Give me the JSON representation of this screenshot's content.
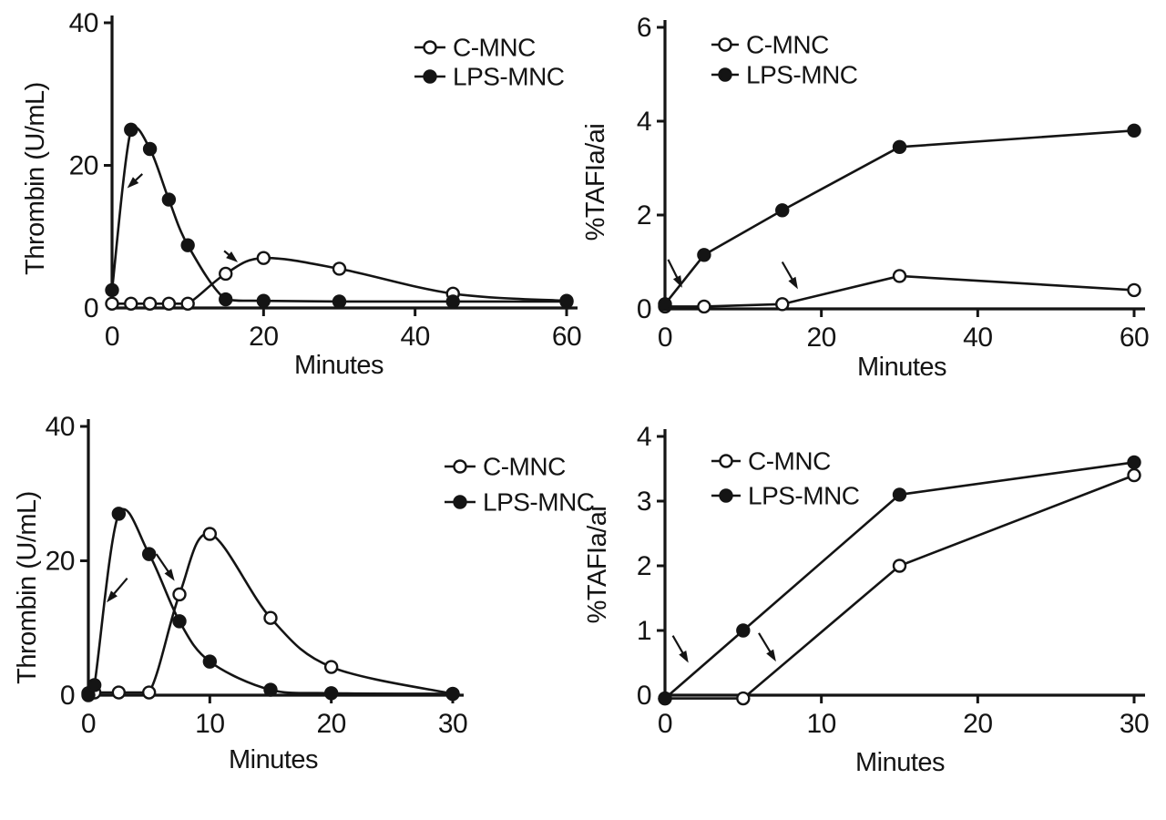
{
  "figure": {
    "background": "#ffffff",
    "ink_color": "#141414",
    "description": "Four-panel line figure: thrombin generation and %TAFIa/ai over time for control (C-MNC) and LPS-stimulated (LPS-MNC) mononuclear cells"
  },
  "chart_data": [
    {
      "id": "thrombin-60min",
      "position": "top-left",
      "type": "line",
      "title": "",
      "xlabel": "Minutes",
      "ylabel": "Thrombin (U/mL)",
      "xlim": [
        0,
        60
      ],
      "ylim": [
        0,
        40
      ],
      "xticks": [
        0,
        20,
        40,
        60
      ],
      "yticks": [
        0,
        20,
        40
      ],
      "grid": false,
      "smooth": true,
      "legend_position": "upper-right",
      "series": [
        {
          "name": "C-MNC",
          "marker": "open-circle",
          "x": [
            0,
            2.5,
            5,
            7.5,
            10,
            15,
            20,
            30,
            45,
            60
          ],
          "y": [
            0.6,
            0.6,
            0.6,
            0.6,
            0.6,
            4.8,
            7.0,
            5.5,
            2.0,
            1.0
          ]
        },
        {
          "name": "LPS-MNC",
          "marker": "filled-circle",
          "x": [
            0,
            2.5,
            5,
            7.5,
            10,
            15,
            20,
            30,
            45,
            60
          ],
          "y": [
            2.5,
            25.0,
            22.3,
            15.2,
            8.8,
            1.2,
            1.0,
            0.9,
            0.9,
            0.9
          ]
        }
      ],
      "arrows": [
        {
          "from": [
            4.0,
            18.8
          ],
          "to": [
            2.0,
            16.8
          ]
        },
        {
          "from": [
            14.8,
            8.0
          ],
          "to": [
            16.6,
            6.4
          ]
        }
      ]
    },
    {
      "id": "tafia-60min",
      "position": "top-right",
      "type": "line",
      "title": "",
      "xlabel": "Minutes",
      "ylabel": "%TAFIa/ai",
      "xlim": [
        0,
        60
      ],
      "ylim": [
        0,
        6
      ],
      "xticks": [
        0,
        20,
        40,
        60
      ],
      "yticks": [
        0,
        2,
        4,
        6
      ],
      "grid": false,
      "smooth": false,
      "legend_position": "upper-left",
      "series": [
        {
          "name": "C-MNC",
          "marker": "open-circle",
          "x": [
            0,
            5,
            15,
            30,
            60
          ],
          "y": [
            0.05,
            0.05,
            0.1,
            0.7,
            0.4
          ]
        },
        {
          "name": "LPS-MNC",
          "marker": "filled-circle",
          "x": [
            0,
            5,
            15,
            30,
            60
          ],
          "y": [
            0.1,
            1.15,
            2.1,
            3.45,
            3.8
          ]
        }
      ],
      "arrows": [
        {
          "from": [
            0.4,
            1.05
          ],
          "to": [
            2.2,
            0.45
          ]
        },
        {
          "from": [
            15.0,
            1.0
          ],
          "to": [
            17.0,
            0.42
          ]
        }
      ]
    },
    {
      "id": "thrombin-30min",
      "position": "bottom-left",
      "type": "line",
      "title": "",
      "xlabel": "Minutes",
      "ylabel": "Thrombin (U/mL)",
      "xlim": [
        0,
        30
      ],
      "ylim": [
        0,
        40
      ],
      "xticks": [
        0,
        10,
        20,
        30
      ],
      "yticks": [
        0,
        20,
        40
      ],
      "grid": false,
      "smooth": true,
      "legend_position": "upper-right",
      "series": [
        {
          "name": "C-MNC",
          "marker": "open-circle",
          "x": [
            0,
            0.5,
            2.5,
            5,
            7.5,
            10,
            15,
            20,
            30
          ],
          "y": [
            0.3,
            0.4,
            0.4,
            0.4,
            15.0,
            24.0,
            11.5,
            4.2,
            0.2
          ]
        },
        {
          "name": "LPS-MNC",
          "marker": "filled-circle",
          "x": [
            0,
            0.5,
            2.5,
            5,
            7.5,
            10,
            15,
            20,
            30
          ],
          "y": [
            0.0,
            1.5,
            27.0,
            21.0,
            11.0,
            5.0,
            0.8,
            0.3,
            0.2
          ]
        }
      ],
      "arrows": [
        {
          "from": [
            3.2,
            17.4
          ],
          "to": [
            1.5,
            13.8
          ]
        },
        {
          "from": [
            5.6,
            21.0
          ],
          "to": [
            7.1,
            17.0
          ]
        }
      ]
    },
    {
      "id": "tafia-30min",
      "position": "bottom-right",
      "type": "line",
      "title": "",
      "xlabel": "Minutes",
      "ylabel": "%TAFIa/ai",
      "xlim": [
        0,
        30
      ],
      "ylim": [
        0,
        4
      ],
      "xticks": [
        0,
        10,
        20,
        30
      ],
      "yticks": [
        0,
        1,
        2,
        3,
        4
      ],
      "grid": false,
      "smooth": false,
      "legend_position": "upper-left",
      "series": [
        {
          "name": "C-MNC",
          "marker": "open-circle",
          "x": [
            0,
            5,
            15,
            30
          ],
          "y": [
            -0.05,
            -0.05,
            2.0,
            3.4
          ]
        },
        {
          "name": "LPS-MNC",
          "marker": "filled-circle",
          "x": [
            0,
            5,
            15,
            30
          ],
          "y": [
            -0.05,
            1.0,
            3.1,
            3.6
          ]
        }
      ],
      "arrows": [
        {
          "from": [
            0.5,
            0.92
          ],
          "to": [
            1.5,
            0.5
          ]
        },
        {
          "from": [
            6.0,
            0.96
          ],
          "to": [
            7.1,
            0.52
          ]
        }
      ]
    }
  ]
}
